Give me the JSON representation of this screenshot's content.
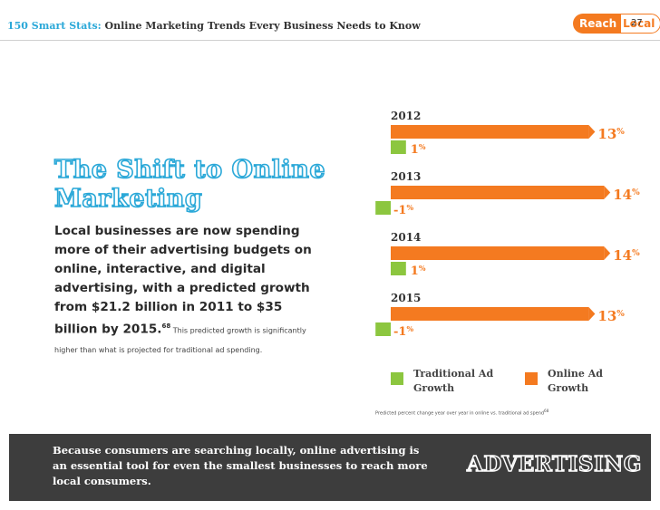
{
  "header": {
    "title_prefix": "150 Smart Stats:",
    "title_rest": " Online Marketing Trends Every Business Needs to Know",
    "logo_reach": "Reach",
    "logo_local": "Local",
    "logo_reg": "®",
    "page_number": "27"
  },
  "main": {
    "headline": "The Shift to Online Marketing",
    "body": "Local businesses are now spending more of their advertising budgets on online, interactive, and digital advertising, with a predicted growth from $21.2 billion in 2011 to $35 billion by 2015.",
    "footnote_ref": "68",
    "body_small": " This predicted growth is significantly higher than what is projected for traditional ad spending."
  },
  "chart_data": {
    "type": "bar",
    "categories": [
      "2012",
      "2013",
      "2014",
      "2015"
    ],
    "series": [
      {
        "name": "Online Ad Growth",
        "values": [
          13,
          14,
          14,
          13
        ],
        "color": "#f47a20",
        "labels": [
          "13",
          "14",
          "14",
          "13"
        ]
      },
      {
        "name": "Traditional Ad Growth",
        "values": [
          1,
          -1,
          1,
          -1
        ],
        "color": "#8cc63f",
        "labels": [
          "1",
          "-1",
          "1",
          "-1"
        ]
      }
    ],
    "unit_symbol": "%",
    "xlim": [
      -1,
      14
    ]
  },
  "legend": {
    "traditional": "Traditional Ad Growth",
    "online": "Online Ad Growth"
  },
  "caption": "Predicted percent change year over year in online vs. traditional ad spend",
  "caption_ref": "68",
  "footer": {
    "message": "Because consumers are searching locally, online advertising is an essential tool for even the smallest businesses to reach more local consumers.",
    "category": "ADVERTISING"
  },
  "colors": {
    "accent_blue": "#2aa8d8",
    "online_orange": "#f47a20",
    "traditional_green": "#8cc63f",
    "footer_bg": "#3d3d3d"
  }
}
